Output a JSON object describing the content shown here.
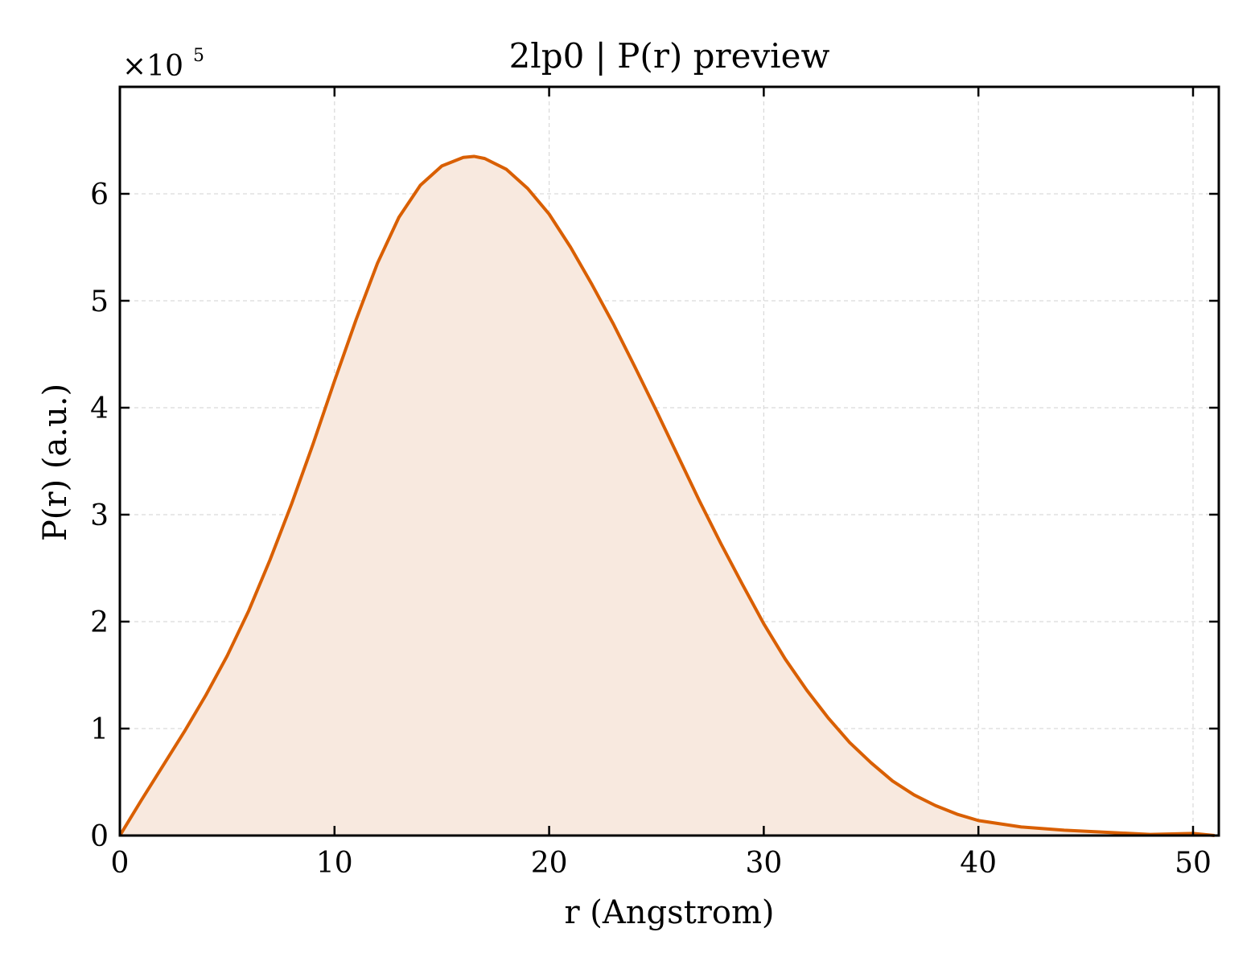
{
  "chart_data": {
    "type": "area",
    "title": "2lp0 | P(r) preview",
    "xlabel": "r (Angstrom)",
    "ylabel": "P(r) (a.u.)",
    "y_multiplier_label": "×10",
    "y_multiplier_exponent": "5",
    "xlim": [
      0,
      51.2
    ],
    "ylim": [
      0,
      7.0
    ],
    "x_ticks": [
      0,
      10,
      20,
      30,
      40,
      50
    ],
    "x_tick_labels": [
      "0",
      "10",
      "20",
      "30",
      "40",
      "50"
    ],
    "y_ticks": [
      0,
      1,
      2,
      3,
      4,
      5,
      6
    ],
    "y_tick_labels": [
      "0",
      "1",
      "2",
      "3",
      "4",
      "5",
      "6"
    ],
    "grid": true,
    "series": [
      {
        "x": [
          0,
          1,
          2,
          3,
          4,
          5,
          6,
          7,
          8,
          9,
          10,
          11,
          12,
          13,
          14,
          15,
          16,
          16.5,
          17,
          18,
          19,
          20,
          21,
          22,
          23,
          24,
          25,
          26,
          27,
          28,
          29,
          30,
          31,
          32,
          33,
          34,
          35,
          36,
          37,
          38,
          39,
          40,
          42,
          44,
          46,
          48,
          50,
          51
        ],
        "y": [
          0.0,
          0.33,
          0.65,
          0.97,
          1.31,
          1.68,
          2.1,
          2.58,
          3.1,
          3.66,
          4.25,
          4.82,
          5.35,
          5.78,
          6.08,
          6.26,
          6.34,
          6.35,
          6.33,
          6.23,
          6.05,
          5.81,
          5.5,
          5.15,
          4.78,
          4.38,
          3.97,
          3.55,
          3.13,
          2.73,
          2.35,
          1.98,
          1.65,
          1.36,
          1.1,
          0.87,
          0.68,
          0.51,
          0.38,
          0.28,
          0.2,
          0.14,
          0.08,
          0.05,
          0.03,
          0.01,
          0.02,
          0.0
        ],
        "color": "#d95f02",
        "fill_color": "#f8e9df"
      }
    ]
  }
}
